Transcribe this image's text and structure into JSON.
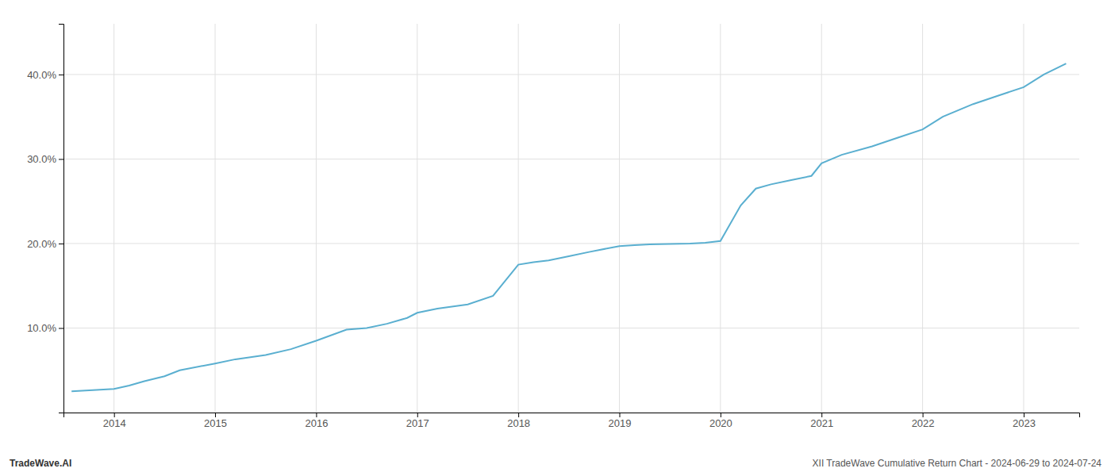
{
  "chart_data": {
    "type": "line",
    "color": "#5aafd0",
    "grid": true,
    "x": [
      2013.58,
      2014.0,
      2014.15,
      2014.3,
      2014.5,
      2014.65,
      2015.0,
      2015.2,
      2015.5,
      2015.75,
      2016.0,
      2016.3,
      2016.5,
      2016.7,
      2016.9,
      2017.0,
      2017.2,
      2017.5,
      2017.75,
      2018.0,
      2018.15,
      2018.3,
      2018.5,
      2018.7,
      2019.0,
      2019.15,
      2019.3,
      2019.5,
      2019.7,
      2019.85,
      2020.0,
      2020.2,
      2020.35,
      2020.5,
      2020.7,
      2020.9,
      2021.0,
      2021.2,
      2021.5,
      2021.75,
      2022.0,
      2022.2,
      2022.5,
      2022.75,
      2023.0,
      2023.2,
      2023.42
    ],
    "values": [
      2.5,
      2.8,
      3.2,
      3.7,
      4.3,
      5.0,
      5.8,
      6.3,
      6.8,
      7.5,
      8.5,
      9.8,
      10.0,
      10.5,
      11.2,
      11.8,
      12.3,
      12.8,
      13.8,
      17.5,
      17.8,
      18.0,
      18.5,
      19.0,
      19.7,
      19.8,
      19.9,
      19.95,
      20.0,
      20.1,
      20.3,
      24.5,
      26.5,
      27.0,
      27.5,
      28.0,
      29.5,
      30.5,
      31.5,
      32.5,
      33.5,
      35.0,
      36.5,
      37.5,
      38.5,
      40.0,
      41.3
    ],
    "xlim": [
      2013.5,
      2023.55
    ],
    "ylim": [
      0,
      46
    ],
    "xticks": [
      2014,
      2015,
      2016,
      2017,
      2018,
      2019,
      2020,
      2021,
      2022,
      2023
    ],
    "yticks": [
      {
        "value": 10.0,
        "label": "10.0%"
      },
      {
        "value": 20.0,
        "label": "20.0%"
      },
      {
        "value": 30.0,
        "label": "30.0%"
      },
      {
        "value": 40.0,
        "label": "40.0%"
      }
    ],
    "annotations": [
      "TradeWave.AI",
      "XII TradeWave Cumulative Return Chart - 2024-06-29 to 2024-07-24"
    ]
  }
}
